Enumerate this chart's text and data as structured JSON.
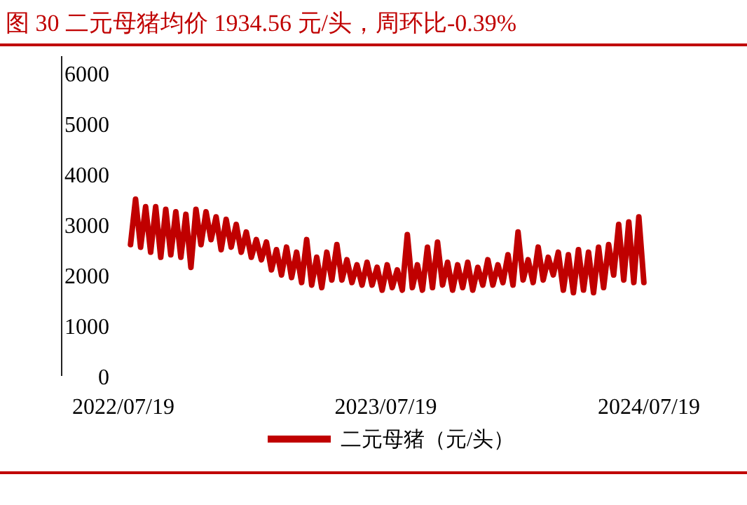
{
  "chart_data": {
    "type": "line",
    "title": "图 30 二元母猪均价 1934.56 元/头，周环比-0.39%",
    "x": [
      "2022-07-29",
      "2022-08-05",
      "2022-08-12",
      "2022-08-19",
      "2022-08-26",
      "2022-09-02",
      "2022-09-09",
      "2022-09-16",
      "2022-09-23",
      "2022-09-30",
      "2022-10-07",
      "2022-10-14",
      "2022-10-21",
      "2022-10-28",
      "2022-11-04",
      "2022-11-11",
      "2022-11-18",
      "2022-11-25",
      "2022-12-02",
      "2022-12-09",
      "2022-12-16",
      "2022-12-23",
      "2022-12-30",
      "2023-01-06",
      "2023-01-13",
      "2023-01-20",
      "2023-01-27",
      "2023-02-03",
      "2023-02-10",
      "2023-02-17",
      "2023-02-24",
      "2023-03-03",
      "2023-03-10",
      "2023-03-17",
      "2023-03-24",
      "2023-03-31",
      "2023-04-07",
      "2023-04-14",
      "2023-04-21",
      "2023-04-28",
      "2023-05-05",
      "2023-05-12",
      "2023-05-19",
      "2023-05-26",
      "2023-06-02",
      "2023-06-09",
      "2023-06-16",
      "2023-06-23",
      "2023-06-30",
      "2023-07-07",
      "2023-07-14",
      "2023-07-21",
      "2023-07-28",
      "2023-08-04",
      "2023-08-11",
      "2023-08-18",
      "2023-08-25",
      "2023-09-01",
      "2023-09-08",
      "2023-09-15",
      "2023-09-22",
      "2023-09-29",
      "2023-10-06",
      "2023-10-13",
      "2023-10-20",
      "2023-10-27",
      "2023-11-03",
      "2023-11-10",
      "2023-11-17",
      "2023-11-24",
      "2023-12-01",
      "2023-12-08",
      "2023-12-15",
      "2023-12-22",
      "2023-12-29",
      "2024-01-05",
      "2024-01-12",
      "2024-01-19",
      "2024-01-26",
      "2024-02-02",
      "2024-02-09",
      "2024-02-16",
      "2024-02-23",
      "2024-03-01",
      "2024-03-08",
      "2024-03-15",
      "2024-03-22",
      "2024-03-29",
      "2024-04-05",
      "2024-04-12",
      "2024-04-19",
      "2024-04-26",
      "2024-05-03",
      "2024-05-10",
      "2024-05-17",
      "2024-05-24",
      "2024-05-31",
      "2024-06-07",
      "2024-06-14",
      "2024-06-21",
      "2024-06-28",
      "2024-07-05",
      "2024-07-12"
    ],
    "series": [
      {
        "name": "二元母猪（元/头）",
        "color": "#c00000",
        "values": [
          2600,
          3500,
          2550,
          3350,
          2450,
          3350,
          2350,
          3300,
          2400,
          3250,
          2350,
          3200,
          2150,
          3300,
          2600,
          3250,
          2700,
          3150,
          2500,
          3100,
          2550,
          3000,
          2450,
          2850,
          2350,
          2700,
          2300,
          2650,
          2100,
          2500,
          2000,
          2550,
          1950,
          2450,
          1850,
          2700,
          1800,
          2350,
          1750,
          2450,
          1900,
          2600,
          1900,
          2300,
          1850,
          2200,
          1800,
          2250,
          1800,
          2150,
          1700,
          2200,
          1750,
          2100,
          1700,
          2800,
          1750,
          2200,
          1700,
          2550,
          1750,
          2650,
          1800,
          2250,
          1700,
          2200,
          1750,
          2250,
          1700,
          2150,
          1800,
          2300,
          1800,
          2200,
          1850,
          2400,
          1800,
          2850,
          1900,
          2300,
          1850,
          2550,
          1900,
          2350,
          2000,
          2450,
          1700,
          2400,
          1650,
          2500,
          1700,
          2450,
          1650,
          2550,
          1750,
          2600,
          2000,
          3000,
          1900,
          3050,
          1850,
          3150,
          1850
        ]
      }
    ],
    "xlim": [
      "2022-07-19",
      "2024-07-19"
    ],
    "xticks": [
      {
        "value": "2022-07-19",
        "label": "2022/07/19"
      },
      {
        "value": "2023-07-19",
        "label": "2023/07/19"
      },
      {
        "value": "2024-07-19",
        "label": "2024/07/19"
      }
    ],
    "ylim": [
      0,
      6000
    ],
    "yticks": [
      0,
      1000,
      2000,
      3000,
      4000,
      5000,
      6000
    ],
    "legend": "bottom"
  }
}
